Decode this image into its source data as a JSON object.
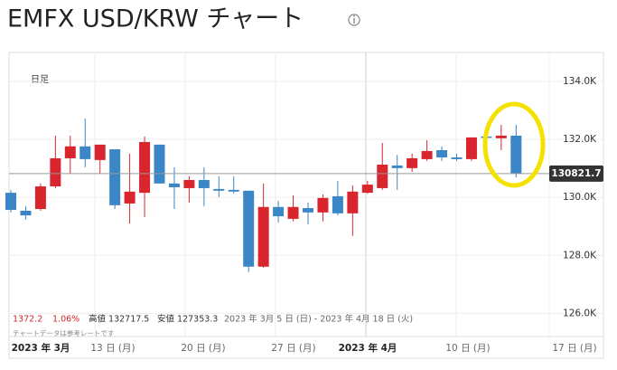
{
  "chart_data": {
    "type": "candlestick",
    "title": "EMFX USD/KRW チャート",
    "period": "日足",
    "up_color": "#d9262e",
    "down_color": "#3b86c6",
    "series": {
      "open": [
        130160,
        129540,
        129600,
        130380,
        131350,
        131760,
        131290,
        131660,
        129790,
        130160,
        131820,
        130480,
        130320,
        130600,
        130290,
        130260,
        130230,
        127610,
        129670,
        129260,
        129630,
        129480,
        130040,
        129450,
        130160,
        130320,
        131100,
        131010,
        131320,
        131630,
        131380,
        131320,
        132100,
        132040,
        132130
      ],
      "high": [
        130260,
        129700,
        130480,
        132130,
        132130,
        132720,
        131820,
        131660,
        131510,
        132100,
        131820,
        131040,
        130730,
        131040,
        130730,
        130730,
        130230,
        130480,
        129880,
        130070,
        129820,
        130100,
        130570,
        130410,
        130570,
        131880,
        131470,
        131510,
        131970,
        131760,
        131510,
        132070,
        132190,
        132500,
        132500
      ],
      "low": [
        129480,
        129230,
        129540,
        130320,
        130820,
        131040,
        130820,
        129600,
        129100,
        129320,
        130480,
        129600,
        129820,
        129700,
        130010,
        130130,
        127420,
        127570,
        129130,
        129170,
        129070,
        129170,
        129380,
        128670,
        130130,
        130260,
        130260,
        130880,
        131260,
        131260,
        131260,
        131260,
        131510,
        131630,
        130690
      ],
      "close": [
        129570,
        129380,
        130380,
        131350,
        131760,
        131320,
        131820,
        129730,
        130200,
        131910,
        130480,
        130350,
        130600,
        130320,
        130230,
        130200,
        127610,
        129670,
        129350,
        129670,
        129480,
        129980,
        129450,
        130200,
        130440,
        131130,
        131010,
        131350,
        131600,
        131380,
        131320,
        132070,
        132070,
        132130,
        130820
      ]
    },
    "last_price": 130821.7,
    "ylim": [
      125200,
      135000
    ],
    "yticks": [
      {
        "value": 126000,
        "label": "126.0K"
      },
      {
        "value": 128000,
        "label": "128.0K"
      },
      {
        "value": 130000,
        "label": "130.0K"
      },
      {
        "value": 132000,
        "label": "132.0K"
      },
      {
        "value": 134000,
        "label": "134.0K"
      }
    ],
    "xtick_labels": [
      "2023 年 3月",
      "13 日 (月)",
      "20 日 (月)",
      "27 日 (月)",
      "2023 年 4月",
      "10 日 (月)",
      "17 日 (月)"
    ],
    "info": {
      "change": "1372.2",
      "change_pct": "1.06%",
      "high": "高値 132717.5",
      "low": "安値 127353.3",
      "range": "2023 年 3月 5 日 (日) - 2023 年 4月 18 日 (火)",
      "note": "チャートデータは参考レートです"
    }
  }
}
